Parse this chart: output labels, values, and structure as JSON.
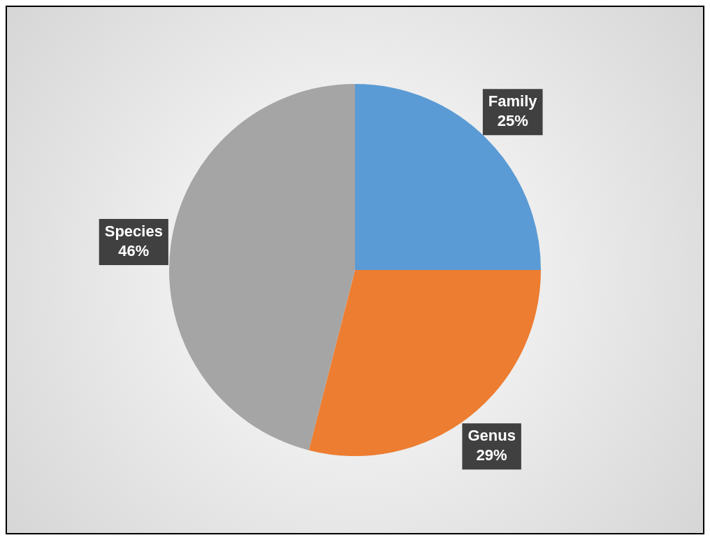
{
  "chart_data": {
    "type": "pie",
    "categories": [
      "Family",
      "Genus",
      "Species"
    ],
    "values": [
      25,
      29,
      46
    ],
    "colors": [
      "#5b9bd5",
      "#ed7d31",
      "#a5a5a5"
    ],
    "value_labels": [
      "25%",
      "29%",
      "46%"
    ],
    "legend": false
  }
}
